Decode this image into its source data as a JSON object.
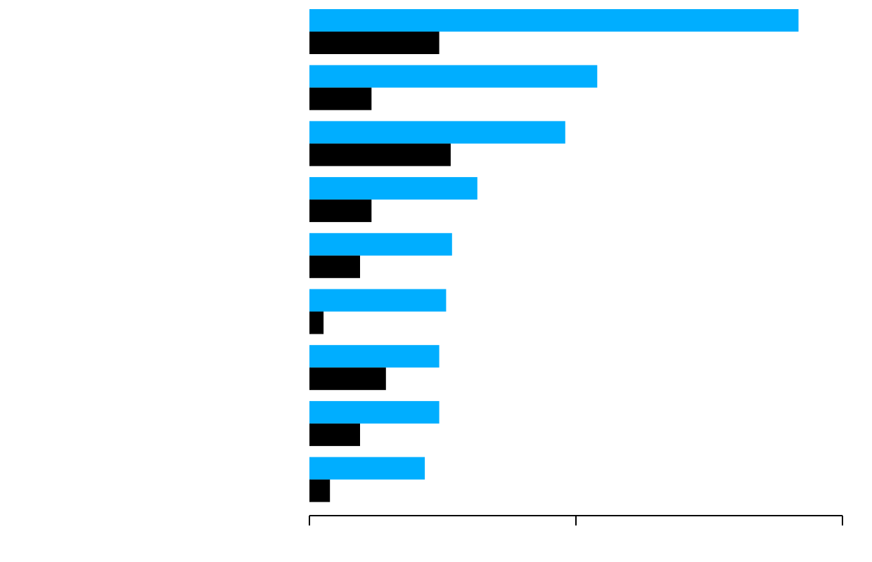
{
  "colors": {
    "series_a": "#00AEFF",
    "series_b": "#000000",
    "axis": "#000000",
    "background": "#ffffff"
  },
  "chart_data": {
    "type": "bar",
    "orientation": "horizontal",
    "title": "",
    "xlabel": "",
    "ylabel": "",
    "categories": [
      "",
      "",
      "",
      "",
      "",
      "",
      "",
      "",
      ""
    ],
    "xlim": [
      0,
      2
    ],
    "x_ticks": [
      0,
      1,
      2
    ],
    "x_tick_labels_visible": false,
    "y_tick_labels_visible": false,
    "grid": false,
    "legend": "none",
    "series": [
      {
        "color": "#00AEFF",
        "values": [
          1.835,
          1.08,
          0.96,
          0.63,
          0.535,
          0.513,
          0.487,
          0.487,
          0.433
        ]
      },
      {
        "color": "#000000",
        "values": [
          0.487,
          0.233,
          0.53,
          0.233,
          0.19,
          0.053,
          0.287,
          0.19,
          0.077
        ]
      }
    ]
  }
}
